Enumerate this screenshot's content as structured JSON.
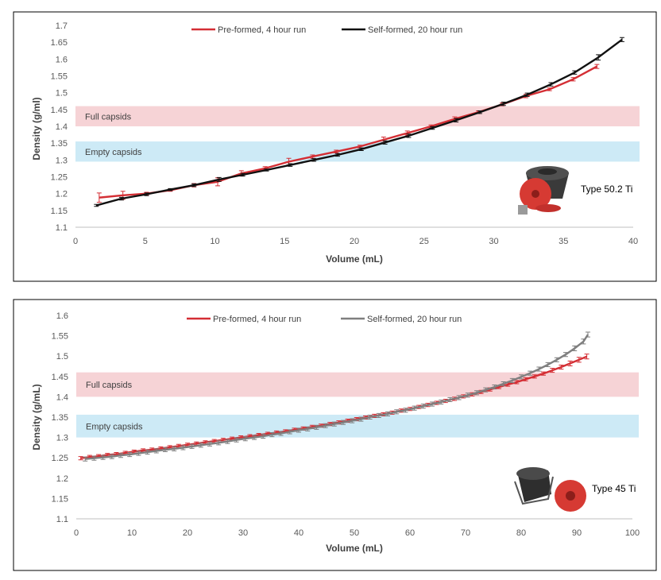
{
  "chart_data": [
    {
      "type": "line",
      "rotor_label": "Type 50.2 Ti",
      "xlabel": "Volume (mL)",
      "ylabel": "Density (g/ml)",
      "xlim": [
        0,
        40
      ],
      "ylim": [
        1.1,
        1.7
      ],
      "xticks": [
        0,
        5,
        10,
        15,
        20,
        25,
        30,
        35,
        40
      ],
      "xtick_labels": [
        "0",
        "5",
        "10",
        "15",
        "20",
        "25",
        "30",
        "35",
        "40"
      ],
      "yticks": [
        1.1,
        1.15,
        1.2,
        1.25,
        1.3,
        1.35,
        1.4,
        1.45,
        1.5,
        1.55,
        1.6,
        1.65,
        1.7
      ],
      "ytick_labels": [
        "1.1",
        "1.15",
        "1.2",
        "1.25",
        "1.3",
        "1.35",
        "1.4",
        "1.45",
        "1.5",
        "1.55",
        "1.6",
        "1.65",
        "1.7"
      ],
      "bands": [
        {
          "label": "Full capsids",
          "y_range": [
            1.4,
            1.46
          ],
          "color": "#f6d3d6"
        },
        {
          "label": "Empty capsids",
          "y_range": [
            1.295,
            1.355
          ],
          "color": "#cdeaf6"
        }
      ],
      "series": [
        {
          "name": "Pre-formed, 4 hour run",
          "color": "#d42e34",
          "x": [
            1.7,
            3.4,
            5.1,
            6.8,
            8.5,
            10.2,
            11.9,
            13.6,
            15.3,
            17.0,
            18.7,
            20.4,
            22.1,
            23.8,
            25.5,
            27.2,
            28.9,
            30.6,
            32.3,
            34.0,
            35.7,
            37.4
          ],
          "y": [
            1.188,
            1.195,
            1.2,
            1.21,
            1.225,
            1.235,
            1.26,
            1.275,
            1.295,
            1.31,
            1.325,
            1.34,
            1.36,
            1.38,
            1.4,
            1.422,
            1.442,
            1.465,
            1.49,
            1.51,
            1.54,
            1.578
          ],
          "err": [
            0.014,
            0.012,
            0.004,
            0.003,
            0.005,
            0.012,
            0.008,
            0.005,
            0.01,
            0.005,
            0.004,
            0.004,
            0.008,
            0.006,
            0.004,
            0.006,
            0.004,
            0.004,
            0.005,
            0.004,
            0.005,
            0.006
          ]
        },
        {
          "name": "Self-formed, 20 hour run",
          "color": "#111111",
          "x": [
            1.5,
            3.3,
            5.1,
            6.8,
            8.5,
            10.3,
            12.0,
            13.7,
            15.4,
            17.1,
            18.8,
            20.5,
            22.2,
            23.9,
            25.6,
            27.3,
            29.0,
            30.7,
            32.4,
            34.1,
            35.8,
            37.5,
            39.2
          ],
          "y": [
            1.165,
            1.185,
            1.198,
            1.212,
            1.225,
            1.242,
            1.256,
            1.27,
            1.285,
            1.3,
            1.315,
            1.332,
            1.352,
            1.372,
            1.395,
            1.418,
            1.442,
            1.467,
            1.494,
            1.525,
            1.56,
            1.605,
            1.658
          ],
          "err": [
            0.003,
            0.004,
            0.004,
            0.003,
            0.004,
            0.006,
            0.004,
            0.003,
            0.004,
            0.004,
            0.004,
            0.004,
            0.005,
            0.005,
            0.004,
            0.005,
            0.004,
            0.005,
            0.005,
            0.005,
            0.005,
            0.008,
            0.006
          ]
        }
      ]
    },
    {
      "type": "line",
      "rotor_label": "Type 45 Ti",
      "xlabel": "Volume (mL)",
      "ylabel": "Density (g/mL)",
      "xlim": [
        0,
        100
      ],
      "ylim": [
        1.1,
        1.6
      ],
      "xticks": [
        0,
        10,
        20,
        30,
        40,
        50,
        60,
        70,
        80,
        90,
        100
      ],
      "xtick_labels": [
        "0",
        "10",
        "20",
        "30",
        "40",
        "50",
        "60",
        "70",
        "80",
        "90",
        "100"
      ],
      "yticks": [
        1.1,
        1.15,
        1.2,
        1.25,
        1.3,
        1.35,
        1.4,
        1.45,
        1.5,
        1.55,
        1.6
      ],
      "ytick_labels": [
        "1.1",
        "1.15",
        "1.2",
        "1.25",
        "1.3",
        "1.35",
        "1.4",
        "1.45",
        "1.5",
        "1.55",
        "1.6"
      ],
      "bands": [
        {
          "label": "Full capsids",
          "y_range": [
            1.4,
            1.46
          ],
          "color": "#f6d3d6"
        },
        {
          "label": "Empty capsids",
          "y_range": [
            1.3,
            1.356
          ],
          "color": "#cdeaf6"
        }
      ],
      "series": [
        {
          "name": "Pre-formed, 4 hour run",
          "color": "#d42e34",
          "x": [
            0.8,
            2.4,
            4.0,
            5.6,
            7.2,
            8.8,
            10.4,
            12.0,
            13.6,
            15.2,
            16.8,
            18.4,
            20.0,
            21.6,
            23.2,
            24.8,
            26.4,
            28.0,
            29.6,
            31.2,
            32.8,
            34.4,
            36.0,
            37.6,
            39.2,
            40.8,
            42.4,
            44.0,
            45.6,
            47.2,
            48.8,
            50.4,
            52.0,
            53.6,
            55.2,
            56.8,
            58.4,
            60.0,
            61.6,
            63.2,
            64.8,
            66.4,
            68.0,
            69.6,
            71.2,
            72.8,
            74.4,
            76.0,
            77.6,
            79.2,
            80.8,
            82.4,
            84.0,
            85.6,
            87.2,
            88.8,
            90.4,
            91.8
          ],
          "y": [
            1.249,
            1.252,
            1.254,
            1.257,
            1.259,
            1.262,
            1.265,
            1.268,
            1.27,
            1.273,
            1.276,
            1.279,
            1.282,
            1.285,
            1.288,
            1.291,
            1.294,
            1.297,
            1.3,
            1.303,
            1.306,
            1.309,
            1.312,
            1.315,
            1.319,
            1.322,
            1.326,
            1.329,
            1.333,
            1.337,
            1.341,
            1.345,
            1.349,
            1.353,
            1.357,
            1.361,
            1.366,
            1.37,
            1.375,
            1.38,
            1.385,
            1.39,
            1.395,
            1.401,
            1.406,
            1.412,
            1.418,
            1.424,
            1.43,
            1.436,
            1.443,
            1.45,
            1.457,
            1.465,
            1.473,
            1.482,
            1.491,
            1.499
          ],
          "err": [
            0.004,
            0.004,
            0.004,
            0.004,
            0.004,
            0.004,
            0.004,
            0.004,
            0.004,
            0.004,
            0.004,
            0.004,
            0.004,
            0.004,
            0.004,
            0.004,
            0.004,
            0.004,
            0.004,
            0.004,
            0.004,
            0.004,
            0.004,
            0.004,
            0.004,
            0.004,
            0.004,
            0.004,
            0.004,
            0.004,
            0.004,
            0.004,
            0.004,
            0.004,
            0.004,
            0.004,
            0.004,
            0.004,
            0.004,
            0.004,
            0.004,
            0.004,
            0.004,
            0.004,
            0.004,
            0.004,
            0.004,
            0.004,
            0.004,
            0.004,
            0.004,
            0.004,
            0.004,
            0.005,
            0.005,
            0.006,
            0.006,
            0.006
          ]
        },
        {
          "name": "Self-formed, 20 hour run",
          "color": "#7f7f7f",
          "x": [
            1.6,
            3.2,
            4.8,
            6.4,
            8.0,
            9.6,
            11.2,
            12.8,
            14.4,
            16.0,
            17.6,
            19.2,
            20.8,
            22.4,
            24.0,
            25.6,
            27.2,
            28.8,
            30.4,
            32.0,
            33.6,
            35.2,
            36.8,
            38.4,
            40.0,
            41.6,
            43.2,
            44.8,
            46.4,
            48.0,
            49.6,
            51.2,
            52.8,
            54.4,
            56.0,
            57.6,
            59.2,
            60.8,
            62.4,
            64.0,
            65.6,
            67.2,
            68.8,
            70.4,
            72.0,
            73.6,
            75.2,
            76.8,
            78.4,
            80.0,
            81.6,
            83.2,
            84.8,
            86.4,
            88.0,
            89.6,
            91.2,
            92.0
          ],
          "y": [
            1.247,
            1.249,
            1.251,
            1.253,
            1.256,
            1.258,
            1.261,
            1.264,
            1.267,
            1.27,
            1.272,
            1.275,
            1.278,
            1.281,
            1.284,
            1.287,
            1.29,
            1.294,
            1.297,
            1.3,
            1.303,
            1.307,
            1.31,
            1.314,
            1.318,
            1.321,
            1.325,
            1.329,
            1.333,
            1.337,
            1.341,
            1.345,
            1.35,
            1.354,
            1.358,
            1.363,
            1.367,
            1.372,
            1.377,
            1.382,
            1.387,
            1.393,
            1.398,
            1.404,
            1.41,
            1.417,
            1.424,
            1.432,
            1.44,
            1.449,
            1.458,
            1.468,
            1.479,
            1.491,
            1.504,
            1.519,
            1.536,
            1.553
          ],
          "err": [
            0.005,
            0.005,
            0.005,
            0.005,
            0.005,
            0.005,
            0.005,
            0.005,
            0.005,
            0.005,
            0.005,
            0.005,
            0.005,
            0.005,
            0.005,
            0.005,
            0.005,
            0.005,
            0.005,
            0.005,
            0.005,
            0.005,
            0.005,
            0.005,
            0.005,
            0.005,
            0.005,
            0.005,
            0.005,
            0.005,
            0.005,
            0.005,
            0.005,
            0.005,
            0.005,
            0.005,
            0.005,
            0.005,
            0.005,
            0.005,
            0.005,
            0.005,
            0.005,
            0.005,
            0.005,
            0.005,
            0.005,
            0.005,
            0.005,
            0.005,
            0.005,
            0.005,
            0.005,
            0.005,
            0.005,
            0.006,
            0.006,
            0.006
          ]
        }
      ]
    }
  ]
}
